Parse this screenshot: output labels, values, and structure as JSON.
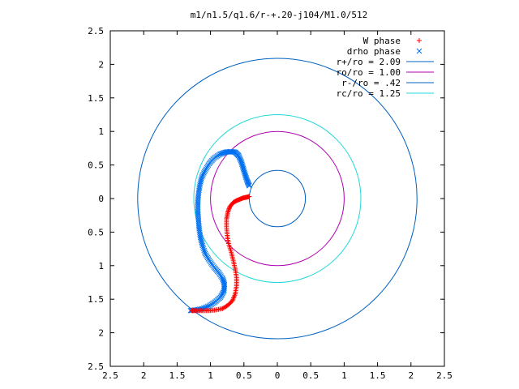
{
  "chart_data": {
    "type": "scatter",
    "title": "m1/n1.5/q1.6/r-+.20-j104/M1.0/512",
    "xlim": [
      -2.5,
      2.5
    ],
    "ylim": [
      -2.5,
      2.5
    ],
    "x_ticks": [
      -2.5,
      -2,
      -1.5,
      -1,
      -0.5,
      0,
      0.5,
      1,
      1.5,
      2,
      2.5
    ],
    "y_ticks": [
      -2.5,
      -2,
      -1.5,
      -1,
      -0.5,
      0,
      0.5,
      1,
      1.5,
      2,
      2.5
    ],
    "x_tick_labels": [
      "2.5",
      "2",
      "1.5",
      "1",
      "0.5",
      "0",
      "0.5",
      "1",
      "1.5",
      "2",
      "2.5"
    ],
    "y_tick_labels": [
      "2.5",
      "2",
      "1.5",
      "1",
      "0.5",
      "0",
      "0.5",
      "1",
      "1.5",
      "2",
      "2.5"
    ],
    "grid": false,
    "legend_position": "top-right",
    "series": [
      {
        "name": "W phase",
        "kind": "points",
        "marker": "+",
        "color": "#ff0000",
        "points": [
          [
            -0.42,
            0.03
          ],
          [
            -0.46,
            0.02
          ],
          [
            -0.51,
            0.01
          ],
          [
            -0.56,
            -0.01
          ],
          [
            -0.61,
            -0.03
          ],
          [
            -0.66,
            -0.06
          ],
          [
            -0.71,
            -0.12
          ],
          [
            -0.74,
            -0.2
          ],
          [
            -0.76,
            -0.3
          ],
          [
            -0.76,
            -0.42
          ],
          [
            -0.75,
            -0.55
          ],
          [
            -0.73,
            -0.67
          ],
          [
            -0.69,
            -0.8
          ],
          [
            -0.66,
            -0.92
          ],
          [
            -0.63,
            -1.05
          ],
          [
            -0.61,
            -1.18
          ],
          [
            -0.61,
            -1.3
          ],
          [
            -0.63,
            -1.42
          ],
          [
            -0.67,
            -1.52
          ],
          [
            -0.74,
            -1.59
          ],
          [
            -0.82,
            -1.64
          ],
          [
            -0.92,
            -1.66
          ],
          [
            -1.02,
            -1.67
          ],
          [
            -1.12,
            -1.67
          ],
          [
            -1.21,
            -1.67
          ],
          [
            -1.28,
            -1.67
          ]
        ]
      },
      {
        "name": "drho phase",
        "kind": "points",
        "marker": "x",
        "color": "#0070f0",
        "points": [
          [
            -0.42,
            0.19
          ],
          [
            -0.45,
            0.26
          ],
          [
            -0.48,
            0.35
          ],
          [
            -0.51,
            0.45
          ],
          [
            -0.54,
            0.55
          ],
          [
            -0.58,
            0.64
          ],
          [
            -0.63,
            0.69
          ],
          [
            -0.7,
            0.7
          ],
          [
            -0.78,
            0.69
          ],
          [
            -0.86,
            0.66
          ],
          [
            -0.95,
            0.6
          ],
          [
            -1.02,
            0.52
          ],
          [
            -1.08,
            0.42
          ],
          [
            -1.13,
            0.32
          ],
          [
            -1.16,
            0.2
          ],
          [
            -1.18,
            0.07
          ],
          [
            -1.19,
            -0.06
          ],
          [
            -1.19,
            -0.19
          ],
          [
            -1.18,
            -0.32
          ],
          [
            -1.17,
            -0.45
          ],
          [
            -1.15,
            -0.58
          ],
          [
            -1.12,
            -0.7
          ],
          [
            -1.08,
            -0.82
          ],
          [
            -1.02,
            -0.92
          ],
          [
            -0.95,
            -1.02
          ],
          [
            -0.88,
            -1.1
          ],
          [
            -0.82,
            -1.19
          ],
          [
            -0.79,
            -1.28
          ],
          [
            -0.8,
            -1.38
          ],
          [
            -0.85,
            -1.47
          ],
          [
            -0.93,
            -1.54
          ],
          [
            -1.02,
            -1.6
          ],
          [
            -1.12,
            -1.64
          ],
          [
            -1.22,
            -1.66
          ],
          [
            -1.3,
            -1.67
          ]
        ]
      },
      {
        "name": "r+/ro = 2.09",
        "kind": "circle",
        "radius": 2.09,
        "color": "#0060c0"
      },
      {
        "name": "ro/ro = 1.00",
        "kind": "circle",
        "radius": 1.0,
        "color": "#b000b0"
      },
      {
        "name": "r-/ro = .42",
        "kind": "circle",
        "radius": 0.42,
        "color": "#0060c0"
      },
      {
        "name": "rc/ro = 1.25",
        "kind": "circle",
        "radius": 1.25,
        "color": "#20d8d8"
      }
    ]
  }
}
